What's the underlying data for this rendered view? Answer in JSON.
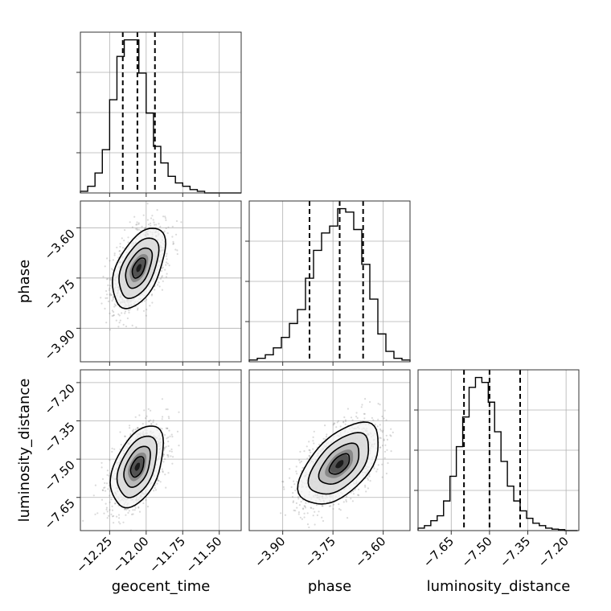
{
  "chart_data": {
    "type": "corner",
    "grid": true,
    "parameters": [
      {
        "name": "geocent_time",
        "range": [
          -12.45,
          -11.35
        ],
        "ticks": [
          -12.25,
          -12.0,
          -11.75,
          -11.5
        ],
        "tick_labels": [
          "−12.25",
          "−12.00",
          "−11.75",
          "−11.50"
        ]
      },
      {
        "name": "phase",
        "range": [
          -4.0,
          -3.52
        ],
        "ticks": [
          -3.9,
          -3.75,
          -3.6
        ],
        "tick_labels": [
          "−3.90",
          "−3.75",
          "−3.60"
        ]
      },
      {
        "name": "luminosity_distance",
        "range": [
          -7.78,
          -7.15
        ],
        "ticks": [
          -7.65,
          -7.5,
          -7.35,
          -7.2
        ],
        "tick_labels": [
          "−7.65",
          "−7.50",
          "−7.35",
          "−7.20"
        ]
      }
    ],
    "histograms": [
      {
        "parameter": "geocent_time",
        "bin_edges": [
          -12.45,
          -12.4,
          -12.35,
          -12.3,
          -12.25,
          -12.2,
          -12.15,
          -12.1,
          -12.05,
          -12.0,
          -11.95,
          -11.9,
          -11.85,
          -11.8,
          -11.75,
          -11.7,
          -11.65,
          -11.6,
          -11.55,
          -11.5,
          -11.45,
          -11.4,
          -11.35
        ],
        "counts": [
          0.5,
          2,
          6,
          13,
          28,
          41,
          46,
          46,
          36,
          24,
          14,
          9,
          5,
          3,
          2,
          1,
          0.5,
          0,
          0,
          0,
          0,
          0
        ],
        "quantiles": [
          -12.16,
          -12.06,
          -11.94
        ]
      },
      {
        "parameter": "phase",
        "bin_edges": [
          -4.0,
          -3.976,
          -3.952,
          -3.928,
          -3.904,
          -3.88,
          -3.856,
          -3.832,
          -3.808,
          -3.784,
          -3.76,
          -3.736,
          -3.712,
          -3.688,
          -3.664,
          -3.64,
          -3.616,
          -3.592,
          -3.568,
          -3.544,
          -3.52
        ],
        "counts": [
          0.5,
          1,
          2,
          4,
          7,
          11,
          15,
          24,
          32,
          37,
          39,
          44,
          43,
          38,
          28,
          18,
          8,
          3,
          1,
          0.5
        ],
        "quantiles": [
          -3.82,
          -3.73,
          -3.66
        ]
      },
      {
        "parameter": "luminosity_distance",
        "bin_edges": [
          -7.78,
          -7.755,
          -7.73,
          -7.705,
          -7.68,
          -7.655,
          -7.63,
          -7.605,
          -7.58,
          -7.555,
          -7.53,
          -7.505,
          -7.48,
          -7.455,
          -7.43,
          -7.405,
          -7.38,
          -7.355,
          -7.33,
          -7.305,
          -7.28,
          -7.255,
          -7.23,
          -7.205,
          -7.18,
          -7.155
        ],
        "counts": [
          0.5,
          1,
          2,
          3,
          6,
          11,
          17,
          23,
          29,
          31,
          30,
          26,
          20,
          14,
          9,
          6,
          4,
          2.5,
          1.5,
          1,
          0.5,
          0.3,
          0.2,
          0,
          0
        ],
        "quantiles": [
          -7.6,
          -7.5,
          -7.38
        ]
      }
    ],
    "pairs": [
      {
        "x": "geocent_time",
        "y": "phase",
        "mean": [
          -12.05,
          -3.72
        ],
        "sd": [
          0.09,
          0.06
        ],
        "correlation": 0.5
      },
      {
        "x": "geocent_time",
        "y": "luminosity_distance",
        "mean": [
          -12.06,
          -7.53
        ],
        "sd": [
          0.09,
          0.08
        ],
        "correlation": 0.45
      },
      {
        "x": "phase",
        "y": "luminosity_distance",
        "mean": [
          -3.73,
          -7.52
        ],
        "sd": [
          0.06,
          0.08
        ],
        "correlation": 0.55
      }
    ],
    "contour_levels_sigma": [
      0.5,
      1.0,
      1.5,
      2.0
    ]
  }
}
